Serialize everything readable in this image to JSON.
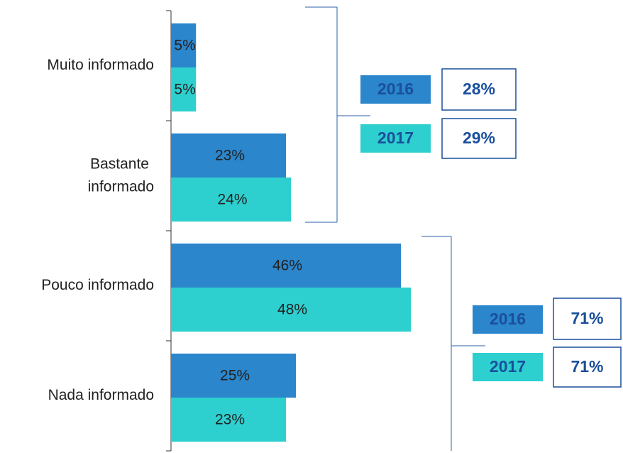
{
  "chart_data": {
    "type": "bar",
    "orientation": "horizontal",
    "categories": [
      "Muito informado",
      "Bastante informado",
      "Pouco informado",
      "Nada informado"
    ],
    "series": [
      {
        "name": "2016",
        "color": "#2b86cc",
        "values": [
          5,
          23,
          46,
          25
        ],
        "value_labels": [
          "5%",
          "23%",
          "46%",
          "25%"
        ]
      },
      {
        "name": "2017",
        "color": "#2ecfcf",
        "values": [
          5,
          24,
          48,
          23
        ],
        "value_labels": [
          "5%",
          "24%",
          "48%",
          "23%"
        ]
      }
    ],
    "xlim": [
      0,
      90
    ],
    "summaries": [
      {
        "totals": [
          {
            "name": "2016",
            "value": 28,
            "label": "28%"
          },
          {
            "name": "2017",
            "value": 29,
            "label": "29%"
          }
        ]
      },
      {
        "totals": [
          {
            "name": "2016",
            "value": 71,
            "label": "71%"
          },
          {
            "name": "2017",
            "value": 71,
            "label": "71%"
          }
        ]
      }
    ]
  }
}
